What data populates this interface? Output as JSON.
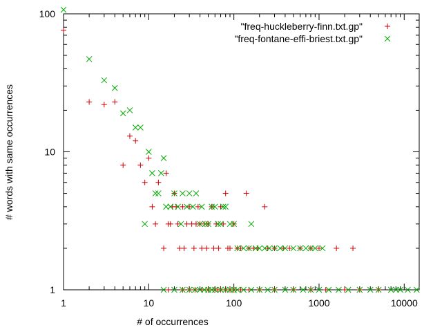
{
  "chart_data": {
    "type": "scatter",
    "title": "",
    "xlabel": "# of occurrences",
    "ylabel": "# words with same occurrences",
    "xscale": "log",
    "yscale": "log",
    "xlim": [
      1,
      15000
    ],
    "ylim": [
      1,
      100
    ],
    "grid": false,
    "legend_position": "top-right",
    "x_ticks": [
      {
        "value": 1,
        "label": "1"
      },
      {
        "value": 10,
        "label": "10"
      },
      {
        "value": 100,
        "label": "100"
      },
      {
        "value": 1000,
        "label": "1000"
      },
      {
        "value": 10000,
        "label": "10000"
      }
    ],
    "y_ticks": [
      {
        "value": 1,
        "label": "1"
      },
      {
        "value": 10,
        "label": "10"
      },
      {
        "value": 100,
        "label": "100"
      }
    ],
    "series": [
      {
        "name": "\"freq-huckleberry-finn.txt.gp\"",
        "marker": "plus",
        "color": "#cc0000",
        "points": [
          [
            1,
            76
          ],
          [
            2,
            23
          ],
          [
            3,
            22
          ],
          [
            4,
            23
          ],
          [
            5,
            8
          ],
          [
            6,
            13
          ],
          [
            7,
            12
          ],
          [
            8,
            8
          ],
          [
            9,
            6
          ],
          [
            10,
            9
          ],
          [
            11,
            4
          ],
          [
            12,
            3
          ],
          [
            13,
            6
          ],
          [
            15,
            2
          ],
          [
            16,
            7
          ],
          [
            17,
            3
          ],
          [
            18,
            3
          ],
          [
            19,
            4
          ],
          [
            20,
            5
          ],
          [
            21,
            4
          ],
          [
            22,
            3
          ],
          [
            23,
            2
          ],
          [
            25,
            4
          ],
          [
            26,
            2
          ],
          [
            28,
            3
          ],
          [
            30,
            4
          ],
          [
            32,
            3
          ],
          [
            34,
            2
          ],
          [
            36,
            3
          ],
          [
            38,
            4
          ],
          [
            40,
            3
          ],
          [
            42,
            2
          ],
          [
            45,
            3
          ],
          [
            48,
            2
          ],
          [
            50,
            3
          ],
          [
            55,
            4
          ],
          [
            58,
            2
          ],
          [
            62,
            3
          ],
          [
            66,
            2
          ],
          [
            70,
            4
          ],
          [
            75,
            3
          ],
          [
            80,
            5
          ],
          [
            85,
            2
          ],
          [
            90,
            2
          ],
          [
            100,
            3
          ],
          [
            110,
            2
          ],
          [
            120,
            2
          ],
          [
            140,
            5
          ],
          [
            150,
            2
          ],
          [
            170,
            2
          ],
          [
            190,
            2
          ],
          [
            230,
            4
          ],
          [
            250,
            2
          ],
          [
            300,
            2
          ],
          [
            380,
            2
          ],
          [
            450,
            2
          ],
          [
            600,
            2
          ],
          [
            800,
            2
          ],
          [
            1000,
            2
          ],
          [
            1600,
            2
          ],
          [
            2500,
            2
          ],
          [
            17,
            1
          ],
          [
            25,
            1
          ],
          [
            30,
            1
          ],
          [
            35,
            1
          ],
          [
            42,
            1
          ],
          [
            50,
            1
          ],
          [
            60,
            1
          ],
          [
            65,
            1
          ],
          [
            70,
            1
          ],
          [
            80,
            1
          ],
          [
            90,
            1
          ],
          [
            100,
            1
          ],
          [
            120,
            1
          ],
          [
            150,
            1
          ],
          [
            200,
            1
          ],
          [
            300,
            1
          ],
          [
            500,
            1
          ],
          [
            800,
            1
          ],
          [
            1200,
            1
          ],
          [
            2000,
            1
          ],
          [
            3000,
            1
          ],
          [
            5000,
            1
          ]
        ]
      },
      {
        "name": "\"freq-fontane-effi-briest.txt.gp\"",
        "marker": "cross",
        "color": "#00aa00",
        "points": [
          [
            1,
            107
          ],
          [
            2,
            47
          ],
          [
            3,
            33
          ],
          [
            4,
            29
          ],
          [
            5,
            19
          ],
          [
            6,
            20
          ],
          [
            7,
            15
          ],
          [
            8,
            15
          ],
          [
            9,
            3
          ],
          [
            10,
            10
          ],
          [
            11,
            7
          ],
          [
            12,
            5
          ],
          [
            13,
            5
          ],
          [
            14,
            7
          ],
          [
            15,
            9
          ],
          [
            16,
            4
          ],
          [
            18,
            4
          ],
          [
            20,
            5
          ],
          [
            22,
            4
          ],
          [
            24,
            3
          ],
          [
            25,
            5
          ],
          [
            28,
            4
          ],
          [
            30,
            5
          ],
          [
            33,
            4
          ],
          [
            36,
            5
          ],
          [
            40,
            3
          ],
          [
            42,
            4
          ],
          [
            46,
            3
          ],
          [
            50,
            3
          ],
          [
            55,
            4
          ],
          [
            60,
            4
          ],
          [
            65,
            3
          ],
          [
            70,
            3
          ],
          [
            75,
            4
          ],
          [
            80,
            4
          ],
          [
            90,
            3
          ],
          [
            100,
            3
          ],
          [
            110,
            2
          ],
          [
            130,
            2
          ],
          [
            150,
            2
          ],
          [
            160,
            3
          ],
          [
            180,
            2
          ],
          [
            200,
            2
          ],
          [
            230,
            2
          ],
          [
            260,
            2
          ],
          [
            300,
            2
          ],
          [
            350,
            2
          ],
          [
            400,
            2
          ],
          [
            500,
            2
          ],
          [
            600,
            2
          ],
          [
            700,
            2
          ],
          [
            800,
            2
          ],
          [
            900,
            2
          ],
          [
            1100,
            2
          ],
          [
            15,
            1
          ],
          [
            20,
            1
          ],
          [
            25,
            1
          ],
          [
            30,
            1
          ],
          [
            35,
            1
          ],
          [
            40,
            1
          ],
          [
            45,
            1
          ],
          [
            50,
            1
          ],
          [
            55,
            1
          ],
          [
            60,
            1
          ],
          [
            70,
            1
          ],
          [
            80,
            1
          ],
          [
            90,
            1
          ],
          [
            100,
            1
          ],
          [
            110,
            1
          ],
          [
            130,
            1
          ],
          [
            160,
            1
          ],
          [
            200,
            1
          ],
          [
            250,
            1
          ],
          [
            300,
            1
          ],
          [
            400,
            1
          ],
          [
            500,
            1
          ],
          [
            650,
            1
          ],
          [
            800,
            1
          ],
          [
            1000,
            1
          ],
          [
            1300,
            1
          ],
          [
            1700,
            1
          ],
          [
            2200,
            1
          ],
          [
            3000,
            1
          ],
          [
            4000,
            1
          ],
          [
            5000,
            1
          ],
          [
            7000,
            1
          ],
          [
            8000,
            1
          ],
          [
            9000,
            1
          ],
          [
            11000,
            1
          ],
          [
            14000,
            1
          ]
        ]
      }
    ]
  }
}
